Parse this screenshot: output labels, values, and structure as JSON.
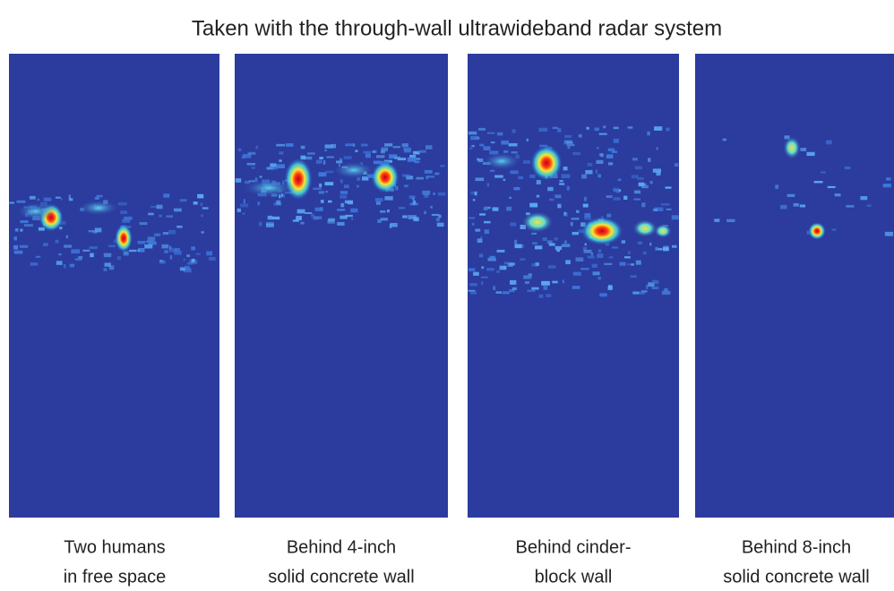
{
  "header": {
    "title": "Taken with the through-wall ultrawideband radar system"
  },
  "panels": [
    {
      "caption": [
        "Two humans",
        "in free space"
      ]
    },
    {
      "caption": [
        "Behind 4-inch",
        "solid concrete wall"
      ]
    },
    {
      "caption": [
        "Behind cinder-",
        "block wall"
      ]
    },
    {
      "caption": [
        "Behind 8-inch",
        "solid concrete wall"
      ]
    }
  ]
}
